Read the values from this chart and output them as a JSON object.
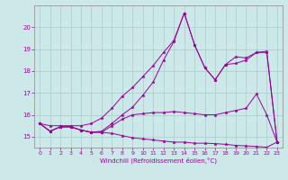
{
  "xlabel": "Windchill (Refroidissement éolien,°C)",
  "bg_color": "#cce8e8",
  "line_color": "#990099",
  "grid_color": "#aacccc",
  "spine_color": "#888888",
  "xlim": [
    -0.5,
    23.5
  ],
  "ylim": [
    14.5,
    21.0
  ],
  "yticks": [
    15,
    16,
    17,
    18,
    19,
    20
  ],
  "xticks": [
    0,
    1,
    2,
    3,
    4,
    5,
    6,
    7,
    8,
    9,
    10,
    11,
    12,
    13,
    14,
    15,
    16,
    17,
    18,
    19,
    20,
    21,
    22,
    23
  ],
  "lines": [
    [
      15.6,
      15.25,
      15.45,
      15.45,
      15.3,
      15.2,
      15.2,
      15.15,
      15.05,
      14.95,
      14.9,
      14.85,
      14.8,
      14.75,
      14.75,
      14.7,
      14.7,
      14.68,
      14.65,
      14.6,
      14.58,
      14.55,
      14.52,
      14.75
    ],
    [
      15.6,
      15.25,
      15.45,
      15.45,
      15.3,
      15.2,
      15.2,
      15.5,
      15.8,
      16.0,
      16.05,
      16.1,
      16.1,
      16.15,
      16.1,
      16.05,
      16.0,
      16.0,
      16.1,
      16.2,
      16.3,
      16.95,
      16.0,
      14.75
    ],
    [
      15.6,
      15.25,
      15.45,
      15.45,
      15.3,
      15.2,
      15.25,
      15.6,
      16.0,
      16.35,
      16.9,
      17.5,
      18.5,
      19.35,
      20.65,
      19.2,
      18.15,
      17.6,
      18.3,
      18.35,
      18.5,
      18.85,
      18.85,
      14.75
    ],
    [
      15.6,
      15.5,
      15.5,
      15.5,
      15.5,
      15.6,
      15.85,
      16.3,
      16.85,
      17.25,
      17.75,
      18.25,
      18.85,
      19.4,
      20.65,
      19.2,
      18.15,
      17.6,
      18.3,
      18.65,
      18.6,
      18.85,
      18.9,
      14.75
    ]
  ]
}
